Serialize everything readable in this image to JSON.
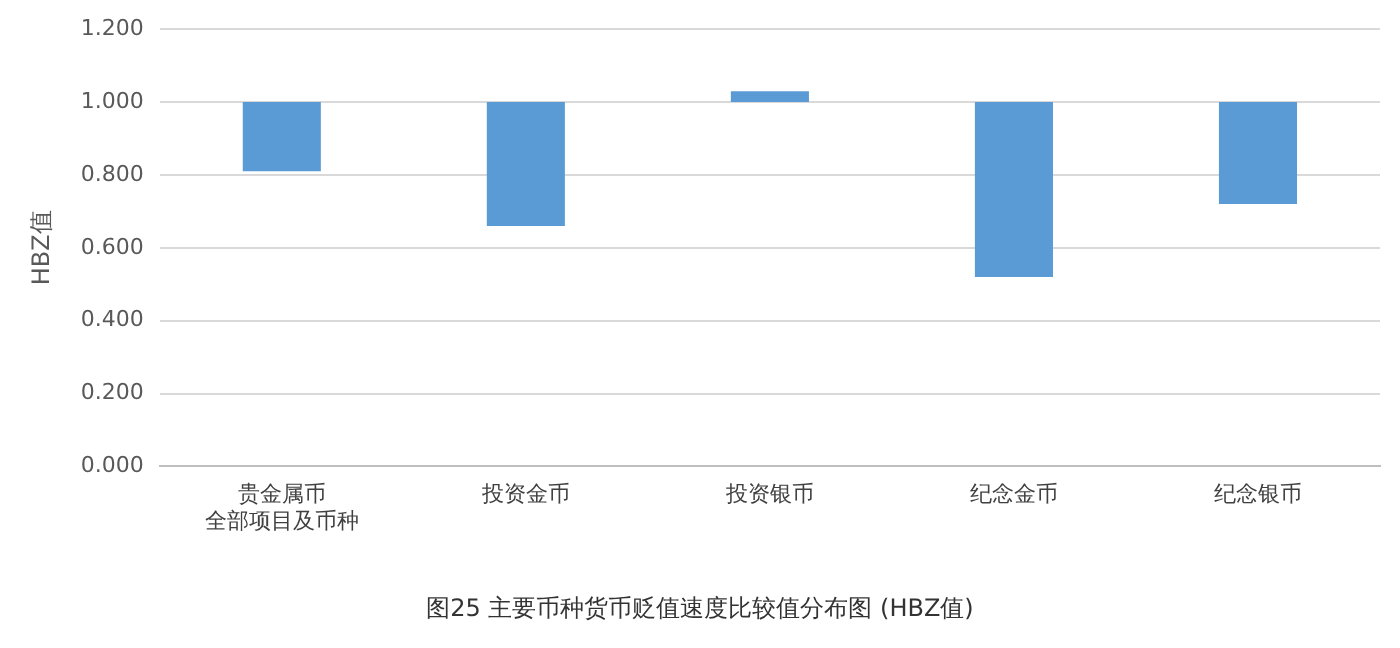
{
  "chart_data": {
    "type": "bar",
    "title": "图25 主要币种货币贬值速度比较值分布图 (HBZ值)",
    "ylabel": "HBZ值",
    "categories": [
      "贵金属币全部项目及币种",
      "投资金币",
      "投资银币",
      "纪念金币",
      "纪念银币"
    ],
    "base": [
      1.0,
      1.0,
      1.0,
      1.0,
      1.0
    ],
    "values": [
      -0.19,
      -0.34,
      0.03,
      -0.48,
      -0.28
    ],
    "color": "#5b9bd5",
    "ylim": [
      0,
      1.2
    ],
    "yticks": [
      {
        "value": 0,
        "label": "0.000"
      },
      {
        "value": 0.2,
        "label": "0.200"
      },
      {
        "value": 0.4,
        "label": "0.400"
      },
      {
        "value": 0.6,
        "label": "0.600"
      },
      {
        "value": 0.8,
        "label": "0.800"
      },
      {
        "value": 1.0,
        "label": "1.000"
      },
      {
        "value": 1.2,
        "label": "1.200"
      }
    ],
    "grid": "y",
    "legend": false
  }
}
